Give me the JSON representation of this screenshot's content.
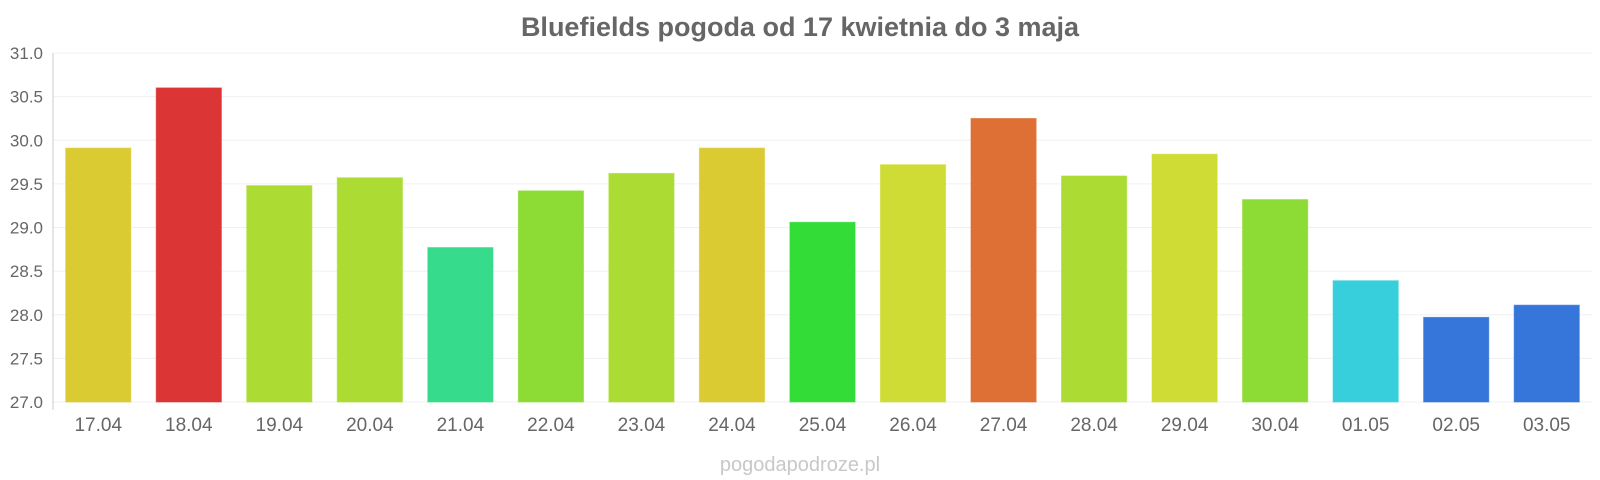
{
  "chart_data": {
    "type": "bar",
    "title": "Bluefields pogoda od 17 kwietnia do 3 maja",
    "xlabel": "",
    "ylabel": "",
    "ylim": [
      27.0,
      31.0
    ],
    "yticks": [
      "27.0",
      "27.5",
      "28.0",
      "28.5",
      "29.0",
      "29.5",
      "30.0",
      "30.5",
      "31.0"
    ],
    "grid": true,
    "legend": "none",
    "categories": [
      "17.04",
      "18.04",
      "19.04",
      "20.04",
      "21.04",
      "22.04",
      "23.04",
      "24.04",
      "25.04",
      "26.04",
      "27.04",
      "28.04",
      "29.04",
      "30.04",
      "01.05",
      "02.05",
      "03.05"
    ],
    "values": [
      29.91,
      30.6,
      29.48,
      29.57,
      28.77,
      29.42,
      29.62,
      29.91,
      29.06,
      29.72,
      30.25,
      29.59,
      29.84,
      29.32,
      28.39,
      27.97,
      28.11
    ],
    "colors": [
      "#dbcb33",
      "#dc3535",
      "#acdc33",
      "#acdc33",
      "#36db8b",
      "#8cdc35",
      "#acdc33",
      "#dbcb33",
      "#33dc37",
      "#cfdc35",
      "#de7035",
      "#acdc33",
      "#cfdc35",
      "#8cdc35",
      "#36cfdb",
      "#3676db",
      "#3676db"
    ]
  },
  "watermark": "pogodapodroze.pl",
  "style": {
    "text_color": "#666666",
    "grid_color": "#f0f0f0",
    "axis_color": "#cccccc",
    "watermark_color": "#c8c8c8"
  }
}
